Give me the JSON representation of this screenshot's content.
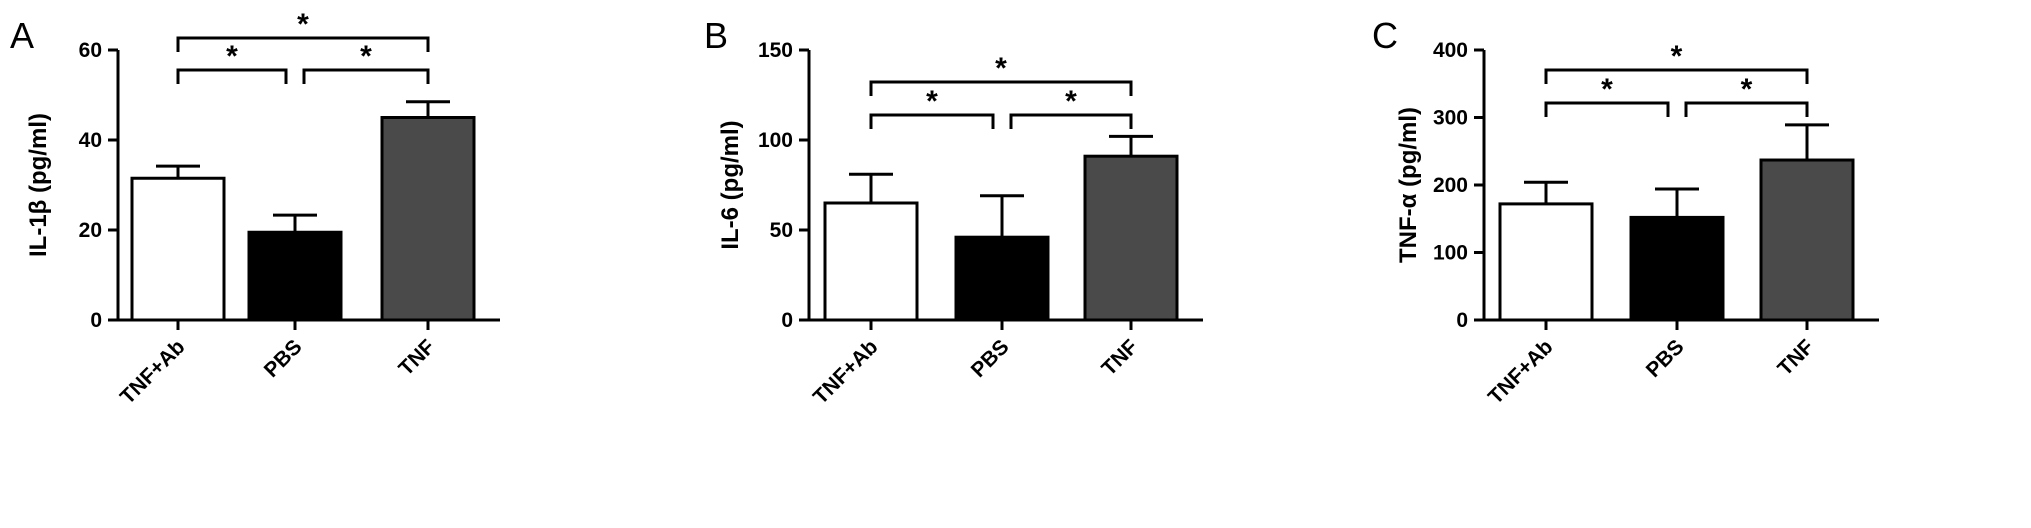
{
  "chart_data": [
    {
      "type": "bar",
      "panel": "A",
      "ylabel": "IL-1β (pg/ml)",
      "categories": [
        "TNF+Ab",
        "PBS",
        "TNF"
      ],
      "values": [
        31.5,
        19.5,
        45.0
      ],
      "errors": [
        2.7,
        3.8,
        3.5
      ],
      "bar_colors": [
        "#ffffff",
        "#000000",
        "#4a4a4a"
      ],
      "ylim": [
        0,
        60
      ],
      "yticks": [
        0,
        20,
        40,
        60
      ],
      "significance": [
        {
          "from": 0,
          "to": 1,
          "label": "*"
        },
        {
          "from": 1,
          "to": 2,
          "label": "*"
        },
        {
          "from": 0,
          "to": 2,
          "label": "*"
        }
      ]
    },
    {
      "type": "bar",
      "panel": "B",
      "ylabel": "IL-6 (pg/ml)",
      "categories": [
        "TNF+Ab",
        "PBS",
        "TNF"
      ],
      "values": [
        65,
        46,
        91
      ],
      "errors": [
        16,
        23,
        11
      ],
      "bar_colors": [
        "#ffffff",
        "#000000",
        "#4a4a4a"
      ],
      "ylim": [
        0,
        150
      ],
      "yticks": [
        0,
        50,
        100,
        150
      ],
      "significance": [
        {
          "from": 0,
          "to": 1,
          "label": "*"
        },
        {
          "from": 1,
          "to": 2,
          "label": "*"
        },
        {
          "from": 0,
          "to": 2,
          "label": "*"
        }
      ]
    },
    {
      "type": "bar",
      "panel": "C",
      "ylabel": "TNF-α (pg/ml)",
      "categories": [
        "TNF+Ab",
        "PBS",
        "TNF"
      ],
      "values": [
        172,
        152,
        237
      ],
      "errors": [
        32,
        42,
        52
      ],
      "bar_colors": [
        "#ffffff",
        "#000000",
        "#4a4a4a"
      ],
      "ylim": [
        0,
        400
      ],
      "yticks": [
        0,
        100,
        200,
        300,
        400
      ],
      "significance": [
        {
          "from": 0,
          "to": 1,
          "label": "*"
        },
        {
          "from": 1,
          "to": 2,
          "label": "*"
        },
        {
          "from": 0,
          "to": 2,
          "label": "*"
        }
      ]
    }
  ]
}
